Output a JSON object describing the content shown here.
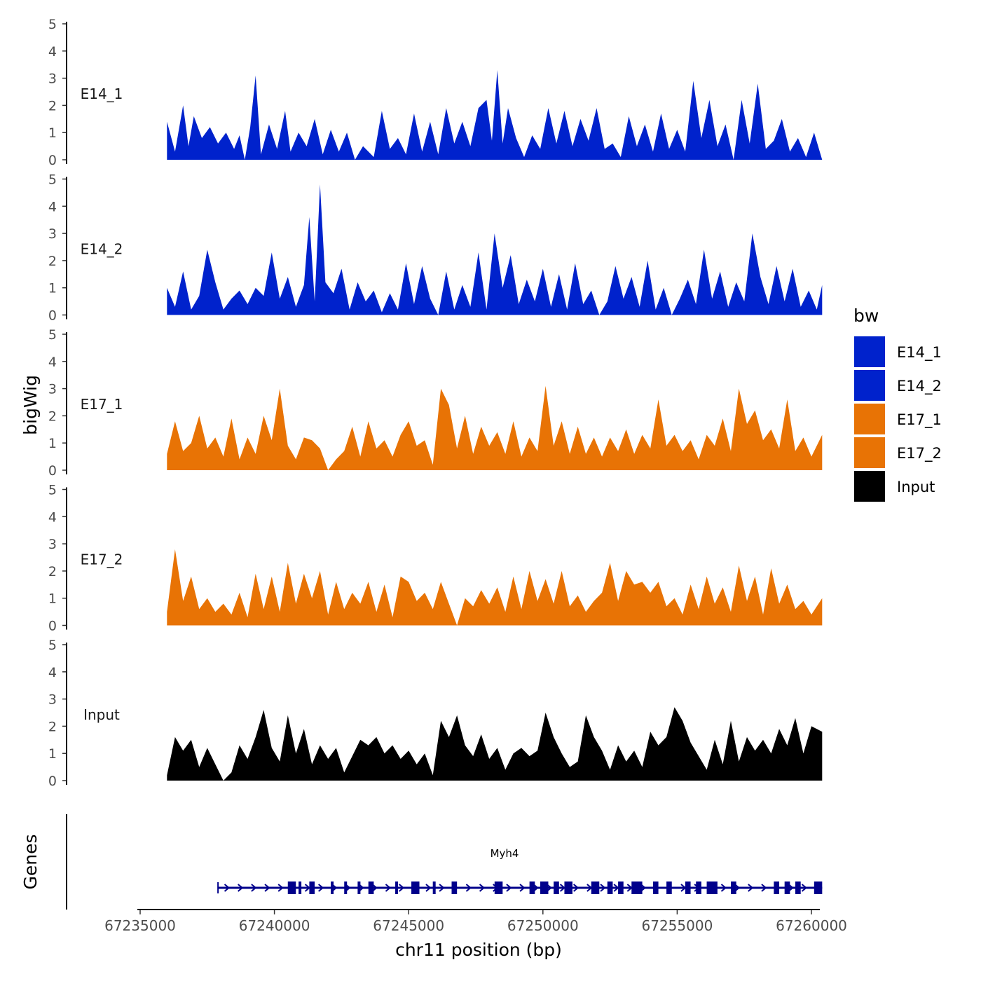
{
  "chart_data": {
    "type": "area",
    "xlabel": "chr11 position (bp)",
    "ylabel": "bigWig",
    "gene_track_label": "Genes",
    "xlim": [
      67235000,
      67260000
    ],
    "x_ticks": [
      67235000,
      67240000,
      67245000,
      67250000,
      67255000,
      67260000
    ],
    "x_tick_labels": [
      "67235000",
      "67240000",
      "67245000",
      "67250000",
      "67255000",
      "67260000"
    ],
    "ylim": [
      0,
      5
    ],
    "y_ticks": [
      0,
      1,
      2,
      3,
      4,
      5
    ],
    "y_tick_labels": [
      "0",
      "1",
      "2",
      "3",
      "4",
      "5"
    ],
    "legend": {
      "title": "bw",
      "position": "right",
      "entries": [
        {
          "label": "E14_1",
          "color": "#0022CC"
        },
        {
          "label": "E14_2",
          "color": "#0022CC"
        },
        {
          "label": "E17_1",
          "color": "#E87305"
        },
        {
          "label": "E17_2",
          "color": "#E87305"
        },
        {
          "label": "Input",
          "color": "#000000"
        }
      ]
    },
    "series": [
      {
        "name": "E14_1",
        "color": "#0022CC",
        "x": [
          67236000,
          67236300,
          67236600,
          67236800,
          67237000,
          67237300,
          67237600,
          67237900,
          67238200,
          67238500,
          67238700,
          67238900,
          67239100,
          67239300,
          67239500,
          67239800,
          67240100,
          67240400,
          67240600,
          67240900,
          67241200,
          67241500,
          67241800,
          67242100,
          67242400,
          67242700,
          67243000,
          67243300,
          67243700,
          67244000,
          67244300,
          67244600,
          67244900,
          67245200,
          67245500,
          67245800,
          67246100,
          67246400,
          67246700,
          67247000,
          67247300,
          67247600,
          67247900,
          67248100,
          67248300,
          67248500,
          67248700,
          67249000,
          67249300,
          67249600,
          67249900,
          67250200,
          67250500,
          67250800,
          67251100,
          67251400,
          67251700,
          67252000,
          67252300,
          67252600,
          67252900,
          67253200,
          67253500,
          67253800,
          67254100,
          67254400,
          67254700,
          67255000,
          67255300,
          67255600,
          67255900,
          67256200,
          67256500,
          67256800,
          67257100,
          67257400,
          67257700,
          67258000,
          67258300,
          67258600,
          67258900,
          67259200,
          67259500,
          67259800,
          67260100,
          67260400
        ],
        "values": [
          1.4,
          0.3,
          2.0,
          0.5,
          1.6,
          0.8,
          1.2,
          0.6,
          1.0,
          0.4,
          0.9,
          0.0,
          1.2,
          3.1,
          0.2,
          1.3,
          0.4,
          1.8,
          0.3,
          1.0,
          0.5,
          1.5,
          0.2,
          1.1,
          0.3,
          1.0,
          0.0,
          0.5,
          0.1,
          1.8,
          0.4,
          0.8,
          0.2,
          1.7,
          0.3,
          1.4,
          0.2,
          1.9,
          0.6,
          1.4,
          0.5,
          1.9,
          2.2,
          0.7,
          3.3,
          0.6,
          1.9,
          0.8,
          0.1,
          0.9,
          0.4,
          1.9,
          0.6,
          1.8,
          0.5,
          1.5,
          0.7,
          1.9,
          0.4,
          0.6,
          0.1,
          1.6,
          0.5,
          1.3,
          0.3,
          1.7,
          0.4,
          1.1,
          0.3,
          2.9,
          0.8,
          2.2,
          0.5,
          1.3,
          0.0,
          2.2,
          0.6,
          2.8,
          0.4,
          0.7,
          1.5,
          0.3,
          0.8,
          0.1,
          1.0,
          0.0
        ]
      },
      {
        "name": "E14_2",
        "color": "#0022CC",
        "x": [
          67236000,
          67236300,
          67236600,
          67236900,
          67237200,
          67237500,
          67237800,
          67238100,
          67238400,
          67238700,
          67239000,
          67239300,
          67239600,
          67239900,
          67240200,
          67240500,
          67240800,
          67241100,
          67241300,
          67241500,
          67241700,
          67241900,
          67242200,
          67242500,
          67242800,
          67243100,
          67243400,
          67243700,
          67244000,
          67244300,
          67244600,
          67244900,
          67245200,
          67245500,
          67245800,
          67246100,
          67246400,
          67246700,
          67247000,
          67247300,
          67247600,
          67247900,
          67248200,
          67248500,
          67248800,
          67249100,
          67249400,
          67249700,
          67250000,
          67250300,
          67250600,
          67250900,
          67251200,
          67251500,
          67251800,
          67252100,
          67252400,
          67252700,
          67253000,
          67253300,
          67253600,
          67253900,
          67254200,
          67254500,
          67254800,
          67255100,
          67255400,
          67255700,
          67256000,
          67256300,
          67256600,
          67256900,
          67257200,
          67257500,
          67257800,
          67258100,
          67258400,
          67258700,
          67259000,
          67259300,
          67259600,
          67259900,
          67260200,
          67260400
        ],
        "values": [
          1.0,
          0.3,
          1.6,
          0.2,
          0.7,
          2.4,
          1.2,
          0.2,
          0.6,
          0.9,
          0.4,
          1.0,
          0.7,
          2.3,
          0.6,
          1.4,
          0.3,
          1.1,
          3.6,
          0.5,
          4.8,
          1.2,
          0.8,
          1.7,
          0.2,
          1.2,
          0.5,
          0.9,
          0.1,
          0.8,
          0.2,
          1.9,
          0.4,
          1.8,
          0.6,
          0.0,
          1.6,
          0.2,
          1.1,
          0.3,
          2.3,
          0.2,
          3.0,
          1.0,
          2.2,
          0.4,
          1.3,
          0.5,
          1.7,
          0.3,
          1.5,
          0.2,
          1.9,
          0.4,
          0.9,
          0.0,
          0.5,
          1.8,
          0.6,
          1.4,
          0.3,
          2.0,
          0.2,
          1.0,
          0.0,
          0.6,
          1.3,
          0.4,
          2.4,
          0.6,
          1.6,
          0.3,
          1.2,
          0.5,
          3.0,
          1.4,
          0.4,
          1.8,
          0.5,
          1.7,
          0.3,
          0.9,
          0.2,
          1.1
        ]
      },
      {
        "name": "E17_1",
        "color": "#E87305",
        "x": [
          67236000,
          67236300,
          67236600,
          67236900,
          67237200,
          67237500,
          67237800,
          67238100,
          67238400,
          67238700,
          67239000,
          67239300,
          67239600,
          67239900,
          67240200,
          67240500,
          67240800,
          67241100,
          67241400,
          67241700,
          67242000,
          67242300,
          67242600,
          67242900,
          67243200,
          67243500,
          67243800,
          67244100,
          67244400,
          67244700,
          67245000,
          67245300,
          67245600,
          67245900,
          67246200,
          67246500,
          67246800,
          67247100,
          67247400,
          67247700,
          67248000,
          67248300,
          67248600,
          67248900,
          67249200,
          67249500,
          67249800,
          67250100,
          67250400,
          67250700,
          67251000,
          67251300,
          67251600,
          67251900,
          67252200,
          67252500,
          67252800,
          67253100,
          67253400,
          67253700,
          67254000,
          67254300,
          67254600,
          67254900,
          67255200,
          67255500,
          67255800,
          67256100,
          67256400,
          67256700,
          67257000,
          67257300,
          67257600,
          67257900,
          67258200,
          67258500,
          67258800,
          67259100,
          67259400,
          67259700,
          67260000,
          67260400
        ],
        "values": [
          0.6,
          1.8,
          0.7,
          1.0,
          2.0,
          0.8,
          1.2,
          0.5,
          1.9,
          0.4,
          1.2,
          0.6,
          2.0,
          1.1,
          3.0,
          0.9,
          0.4,
          1.2,
          1.1,
          0.8,
          0.0,
          0.4,
          0.7,
          1.6,
          0.5,
          1.8,
          0.8,
          1.1,
          0.5,
          1.3,
          1.8,
          0.9,
          1.1,
          0.2,
          3.0,
          2.4,
          0.8,
          2.0,
          0.6,
          1.6,
          0.9,
          1.4,
          0.6,
          1.8,
          0.5,
          1.2,
          0.7,
          3.1,
          0.9,
          1.8,
          0.6,
          1.6,
          0.6,
          1.2,
          0.5,
          1.2,
          0.7,
          1.5,
          0.6,
          1.3,
          0.8,
          2.6,
          0.9,
          1.3,
          0.7,
          1.1,
          0.4,
          1.3,
          0.9,
          1.9,
          0.7,
          3.0,
          1.7,
          2.2,
          1.1,
          1.5,
          0.8,
          2.6,
          0.7,
          1.2,
          0.5,
          1.3
        ]
      },
      {
        "name": "E17_2",
        "color": "#E87305",
        "x": [
          67236000,
          67236300,
          67236600,
          67236900,
          67237200,
          67237500,
          67237800,
          67238100,
          67238400,
          67238700,
          67239000,
          67239300,
          67239600,
          67239900,
          67240200,
          67240500,
          67240800,
          67241100,
          67241400,
          67241700,
          67242000,
          67242300,
          67242600,
          67242900,
          67243200,
          67243500,
          67243800,
          67244100,
          67244400,
          67244700,
          67245000,
          67245300,
          67245600,
          67245900,
          67246200,
          67246500,
          67246800,
          67247100,
          67247400,
          67247700,
          67248000,
          67248300,
          67248600,
          67248900,
          67249200,
          67249500,
          67249800,
          67250100,
          67250400,
          67250700,
          67251000,
          67251300,
          67251600,
          67251900,
          67252200,
          67252500,
          67252800,
          67253100,
          67253400,
          67253700,
          67254000,
          67254300,
          67254600,
          67254900,
          67255200,
          67255500,
          67255800,
          67256100,
          67256400,
          67256700,
          67257000,
          67257300,
          67257600,
          67257900,
          67258200,
          67258500,
          67258800,
          67259100,
          67259400,
          67259700,
          67260000,
          67260400
        ],
        "values": [
          0.5,
          2.8,
          0.9,
          1.8,
          0.6,
          1.0,
          0.5,
          0.8,
          0.4,
          1.2,
          0.3,
          1.9,
          0.6,
          1.8,
          0.5,
          2.3,
          0.8,
          1.9,
          1.0,
          2.0,
          0.4,
          1.6,
          0.6,
          1.2,
          0.8,
          1.6,
          0.5,
          1.5,
          0.3,
          1.8,
          1.6,
          0.9,
          1.2,
          0.6,
          1.6,
          0.8,
          0.0,
          1.0,
          0.7,
          1.3,
          0.8,
          1.4,
          0.5,
          1.8,
          0.6,
          2.0,
          0.9,
          1.7,
          0.8,
          2.0,
          0.7,
          1.1,
          0.5,
          0.9,
          1.2,
          2.3,
          0.9,
          2.0,
          1.5,
          1.6,
          1.2,
          1.6,
          0.7,
          1.0,
          0.4,
          1.5,
          0.6,
          1.8,
          0.8,
          1.4,
          0.5,
          2.2,
          0.9,
          1.8,
          0.4,
          2.1,
          0.8,
          1.5,
          0.6,
          0.9,
          0.4,
          1.0
        ]
      },
      {
        "name": "Input",
        "color": "#000000",
        "x": [
          67236000,
          67236300,
          67236600,
          67236900,
          67237200,
          67237500,
          67237800,
          67238100,
          67238400,
          67238700,
          67239000,
          67239300,
          67239600,
          67239900,
          67240200,
          67240500,
          67240800,
          67241100,
          67241400,
          67241700,
          67242000,
          67242300,
          67242600,
          67242900,
          67243200,
          67243500,
          67243800,
          67244100,
          67244400,
          67244700,
          67245000,
          67245300,
          67245600,
          67245900,
          67246200,
          67246500,
          67246800,
          67247100,
          67247400,
          67247700,
          67248000,
          67248300,
          67248600,
          67248900,
          67249200,
          67249500,
          67249800,
          67250100,
          67250400,
          67250700,
          67251000,
          67251300,
          67251600,
          67251900,
          67252200,
          67252500,
          67252800,
          67253100,
          67253400,
          67253700,
          67254000,
          67254300,
          67254600,
          67254900,
          67255200,
          67255500,
          67255800,
          67256100,
          67256400,
          67256700,
          67257000,
          67257300,
          67257600,
          67257900,
          67258200,
          67258500,
          67258800,
          67259100,
          67259400,
          67259700,
          67260000,
          67260400
        ],
        "values": [
          0.2,
          1.6,
          1.1,
          1.5,
          0.5,
          1.2,
          0.6,
          0.0,
          0.3,
          1.3,
          0.8,
          1.6,
          2.6,
          1.2,
          0.7,
          2.4,
          1.0,
          1.9,
          0.6,
          1.3,
          0.8,
          1.2,
          0.3,
          0.9,
          1.5,
          1.3,
          1.6,
          1.0,
          1.3,
          0.8,
          1.1,
          0.6,
          1.0,
          0.2,
          2.2,
          1.6,
          2.4,
          1.3,
          0.9,
          1.7,
          0.8,
          1.2,
          0.4,
          1.0,
          1.2,
          0.9,
          1.1,
          2.5,
          1.6,
          1.0,
          0.5,
          0.7,
          2.4,
          1.6,
          1.1,
          0.4,
          1.3,
          0.7,
          1.1,
          0.5,
          1.8,
          1.3,
          1.6,
          2.7,
          2.2,
          1.4,
          0.9,
          0.4,
          1.5,
          0.6,
          2.2,
          0.7,
          1.6,
          1.1,
          1.5,
          1.0,
          1.9,
          1.3,
          2.3,
          1.0,
          2.0,
          1.8
        ]
      }
    ],
    "gene": {
      "name": "Myh4",
      "start": 67237900,
      "end": 67260400,
      "strand": "+",
      "color": "#00008B",
      "exons": [
        [
          67240500,
          67240800
        ],
        [
          67240900,
          67241000
        ],
        [
          67241300,
          67241500
        ],
        [
          67242100,
          67242200
        ],
        [
          67242600,
          67242700
        ],
        [
          67243100,
          67243200
        ],
        [
          67243500,
          67243700
        ],
        [
          67244500,
          67244600
        ],
        [
          67245100,
          67245400
        ],
        [
          67245900,
          67246000
        ],
        [
          67246600,
          67246800
        ],
        [
          67248200,
          67248500
        ],
        [
          67249500,
          67249700
        ],
        [
          67249900,
          67250200
        ],
        [
          67250400,
          67250600
        ],
        [
          67250800,
          67251100
        ],
        [
          67251800,
          67252100
        ],
        [
          67252400,
          67252600
        ],
        [
          67252800,
          67253000
        ],
        [
          67253300,
          67253700
        ],
        [
          67254100,
          67254300
        ],
        [
          67254600,
          67254800
        ],
        [
          67255300,
          67255500
        ],
        [
          67255700,
          67255900
        ],
        [
          67256100,
          67256500
        ],
        [
          67257000,
          67257200
        ],
        [
          67258600,
          67258800
        ],
        [
          67259000,
          67259200
        ],
        [
          67259400,
          67259600
        ],
        [
          67260100,
          67260400
        ]
      ]
    }
  }
}
